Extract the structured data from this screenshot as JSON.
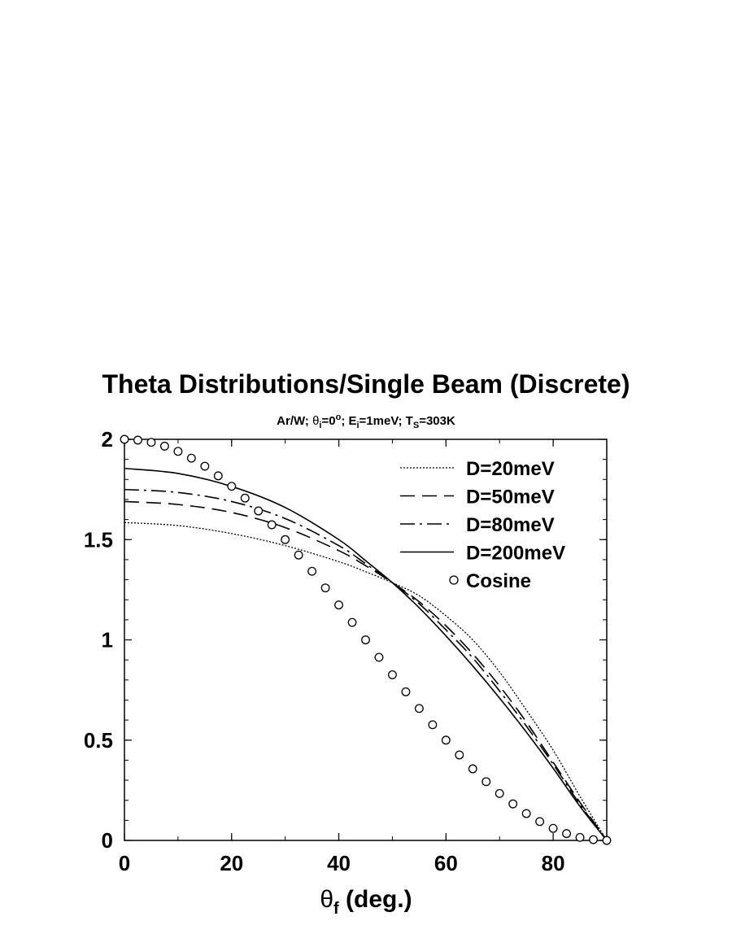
{
  "chart_data": {
    "type": "line",
    "title": "Theta Distributions/Single Beam (Discrete)",
    "subtitle": {
      "ar_w": "Ar/W; ",
      "theta_sym": "θ",
      "theta_sub": "i",
      "theta_eq": "=0",
      "deg": "o",
      "ei_pre": "; E",
      "ei_sub": "i",
      "ei_eq": "=1meV; T",
      "ts_sub": "S",
      "ts_eq": "=303K"
    },
    "xlabel": {
      "sym": "θ",
      "sub": "f",
      "rest": " (deg.)"
    },
    "ylabel": "",
    "xlim": [
      0,
      90
    ],
    "ylim": [
      0,
      2
    ],
    "xticks": [
      "0",
      "20",
      "40",
      "60",
      "80"
    ],
    "yticks": [
      "0",
      "0.5",
      "1",
      "1.5",
      "2"
    ],
    "legend_position": "top-right",
    "series": [
      {
        "name": "D=20meV",
        "style": "dotted",
        "x": [
          0,
          10,
          20,
          30,
          40,
          45,
          50,
          55,
          60,
          65,
          70,
          75,
          80,
          85,
          90
        ],
        "y": [
          1.585,
          1.57,
          1.53,
          1.47,
          1.39,
          1.34,
          1.285,
          1.22,
          1.12,
          1.0,
          0.84,
          0.65,
          0.45,
          0.22,
          0.0
        ]
      },
      {
        "name": "D=50meV",
        "style": "dashed",
        "x": [
          0,
          10,
          20,
          30,
          40,
          45,
          50,
          55,
          60,
          65,
          70,
          75,
          80,
          85,
          90
        ],
        "y": [
          1.69,
          1.675,
          1.635,
          1.56,
          1.445,
          1.37,
          1.285,
          1.19,
          1.07,
          0.93,
          0.77,
          0.59,
          0.39,
          0.19,
          0.0
        ]
      },
      {
        "name": "D=80meV",
        "style": "dashdot",
        "x": [
          0,
          10,
          20,
          30,
          40,
          45,
          50,
          55,
          60,
          65,
          70,
          75,
          80,
          85,
          90
        ],
        "y": [
          1.75,
          1.735,
          1.69,
          1.605,
          1.47,
          1.38,
          1.285,
          1.18,
          1.05,
          0.91,
          0.745,
          0.57,
          0.38,
          0.18,
          0.0
        ]
      },
      {
        "name": "D=200meV",
        "style": "solid",
        "x": [
          0,
          10,
          20,
          30,
          40,
          45,
          50,
          55,
          60,
          65,
          70,
          75,
          80,
          85,
          90
        ],
        "y": [
          1.855,
          1.83,
          1.765,
          1.66,
          1.5,
          1.395,
          1.285,
          1.16,
          1.02,
          0.87,
          0.71,
          0.54,
          0.36,
          0.17,
          0.0
        ]
      },
      {
        "name": "Cosine",
        "style": "circles",
        "x": [
          0,
          2.5,
          5,
          7.5,
          10,
          12.5,
          15,
          17.5,
          20,
          22.5,
          25,
          27.5,
          30,
          32.5,
          35,
          37.5,
          40,
          42.5,
          45,
          47.5,
          50,
          52.5,
          55,
          57.5,
          60,
          62.5,
          65,
          67.5,
          70,
          72.5,
          75,
          77.5,
          80,
          82.5,
          85,
          87.5,
          90
        ],
        "y": [
          2.0,
          1.996,
          1.985,
          1.966,
          1.94,
          1.906,
          1.866,
          1.818,
          1.766,
          1.707,
          1.643,
          1.574,
          1.5,
          1.423,
          1.342,
          1.259,
          1.174,
          1.087,
          1.0,
          0.913,
          0.826,
          0.741,
          0.658,
          0.577,
          0.5,
          0.426,
          0.357,
          0.293,
          0.234,
          0.182,
          0.134,
          0.094,
          0.06,
          0.034,
          0.015,
          0.004,
          0.0
        ]
      }
    ]
  }
}
